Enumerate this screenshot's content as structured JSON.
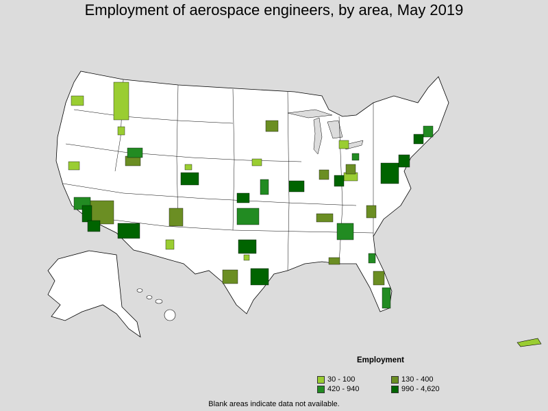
{
  "title": "Employment of aerospace engineers, by area, May 2019",
  "legend": {
    "title": "Employment",
    "items": [
      {
        "label": "30 - 100",
        "color": "#9acd32"
      },
      {
        "label": "130 - 400",
        "color": "#6b8e23"
      },
      {
        "label": "420 - 940",
        "color": "#228b22"
      },
      {
        "label": "990 - 4,620",
        "color": "#006400"
      }
    ]
  },
  "footnote": "Blank areas indicate data not available.",
  "colors": {
    "background": "#dcdcdc",
    "land": "#ffffff",
    "border": "#000000"
  }
}
